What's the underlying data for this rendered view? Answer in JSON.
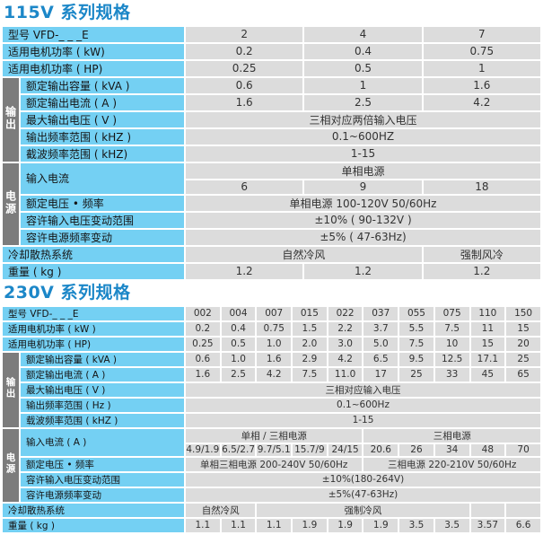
{
  "colors": {
    "title_blue": "#1c87c8",
    "label_bg": "#74d0f3",
    "data_bg": "#dcdcdc",
    "group_strip_bg": "#7c7c7c",
    "page_bg": "#ffffff"
  },
  "tables": [
    {
      "title": "115V 系列规格",
      "data_columns": 3,
      "rows": [
        {
          "label": "型号 VFD-_ _ _E",
          "cells": [
            "2",
            "4",
            "7"
          ]
        },
        {
          "label": "适用电机功率 ( kW)",
          "cells": [
            "0.2",
            "0.4",
            "0.75"
          ]
        },
        {
          "label": "适用电机功率 ( HP)",
          "cells": [
            "0.25",
            "0.5",
            "1"
          ]
        },
        {
          "label": "额定输出容量 ( kVA )",
          "band": {
            "label": "输出",
            "key": "output",
            "span": 5
          },
          "cells": [
            "0.6",
            "1",
            "1.6"
          ]
        },
        {
          "label": "额定输出电流 ( A )",
          "cells": [
            "1.6",
            "2.5",
            "4.2"
          ]
        },
        {
          "label": "最大输出电压 ( V )",
          "cells": [
            {
              "t": "三相对应两倍输入电压",
              "span": 3
            }
          ]
        },
        {
          "label": "输出频率范围 ( kHZ )",
          "cells": [
            {
              "t": "0.1~600HZ",
              "span": 3
            }
          ]
        },
        {
          "label": "截波频率范围 ( kHZ)",
          "cells": [
            {
              "t": "1-15",
              "span": 3
            }
          ]
        },
        {
          "label": "输入电流",
          "labelRowspan": 2,
          "band": {
            "label": "电源",
            "key": "power",
            "span": 5
          },
          "cells": [
            {
              "t": "单相电源",
              "span": 3
            }
          ]
        },
        {
          "label": null,
          "cells": [
            "6",
            "9",
            "18"
          ]
        },
        {
          "label": "额定电压 • 频率",
          "cells": [
            {
              "t": "单相电源 100-120V 50/60Hz",
              "span": 3
            }
          ]
        },
        {
          "label": "容许输入电压变动范围",
          "cells": [
            {
              "t": "±10% ( 90-132V )",
              "span": 3
            }
          ]
        },
        {
          "label": "容许电源频率变动",
          "cells": [
            {
              "t": "±5% ( 47-63Hz)",
              "span": 3
            }
          ]
        },
        {
          "label": "冷却散热系统",
          "cells": [
            {
              "t": "自然冷风",
              "span": 2
            },
            {
              "t": "强制风冷",
              "span": 1
            }
          ]
        },
        {
          "label": "重量 ( kg )",
          "cells": [
            "1.2",
            "1.2",
            "1.2"
          ]
        }
      ]
    },
    {
      "title": "230V 系列规格",
      "data_columns": 10,
      "rows": [
        {
          "label": "型号 VFD-_ _ _E",
          "cells": [
            "002",
            "004",
            "007",
            "015",
            "022",
            "037",
            "055",
            "075",
            "110",
            "150"
          ]
        },
        {
          "label": "适用电机功率 ( kW )",
          "cells": [
            "0.2",
            "0.4",
            "0.75",
            "1.5",
            "2.2",
            "3.7",
            "5.5",
            "7.5",
            "11",
            "15"
          ]
        },
        {
          "label": "适用电机功率 ( HP)",
          "cells": [
            "0.25",
            "0.5",
            "1.0",
            "2.0",
            "3.0",
            "5.0",
            "7.5",
            "10",
            "15",
            "20"
          ]
        },
        {
          "label": "额定输出容量 ( kVA )",
          "band": {
            "label": "输出",
            "key": "output",
            "span": 5
          },
          "cells": [
            "0.6",
            "1.0",
            "1.6",
            "2.9",
            "4.2",
            "6.5",
            "9.5",
            "12.5",
            "17.1",
            "25"
          ]
        },
        {
          "label": "额定输出电流 ( A )",
          "cells": [
            "1.6",
            "2.5",
            "4.2",
            "7.5",
            "11.0",
            "17",
            "25",
            "33",
            "45",
            "65"
          ]
        },
        {
          "label": "最大输出电压 ( V )",
          "cells": [
            {
              "t": "三相对应输入电压",
              "span": 10
            }
          ]
        },
        {
          "label": "输出频率范围 ( Hz )",
          "cells": [
            {
              "t": "0.1~600Hz",
              "span": 10
            }
          ]
        },
        {
          "label": "载波频率范围 ( kHZ )",
          "cells": [
            {
              "t": "1-15",
              "span": 10
            }
          ]
        },
        {
          "label": "输入电流 ( A )",
          "labelRowspan": 2,
          "band": {
            "label": "电源",
            "key": "power",
            "span": 5
          },
          "cells": [
            {
              "t": "单相 / 三相电源",
              "span": 5
            },
            {
              "t": "三相电源",
              "span": 5
            }
          ]
        },
        {
          "label": null,
          "cells": [
            "4.9/1.9",
            "6.5/2.7",
            "9.7/5.1",
            "15.7/9",
            "24/15",
            "20.6",
            "26",
            "34",
            "48",
            "70"
          ]
        },
        {
          "label": "额定电压 • 频率",
          "cells": [
            {
              "t": "单相三相电源 200-240V 50/60Hz",
              "span": 5
            },
            {
              "t": "三相电源 220-210V 50/60Hz",
              "span": 5
            }
          ]
        },
        {
          "label": "容许输入电压变动范围",
          "cells": [
            {
              "t": "±10%(180-264V)",
              "span": 10
            }
          ]
        },
        {
          "label": "容许电源频率变动",
          "cells": [
            {
              "t": "±5%(47-63Hz)",
              "span": 10
            }
          ]
        },
        {
          "label": "冷却散热系统",
          "cells": [
            {
              "t": "自然冷风",
              "span": 2
            },
            {
              "t": "强制冷风",
              "span": 6
            },
            {
              "t": "",
              "span": 1
            },
            {
              "t": "",
              "span": 1
            }
          ]
        },
        {
          "label": "重量 ( kg )",
          "cells": [
            "1.1",
            "1.1",
            "1.1",
            "1.9",
            "1.9",
            "1.9",
            "3.5",
            "3.5",
            "3.57",
            "6.6"
          ]
        }
      ]
    }
  ]
}
